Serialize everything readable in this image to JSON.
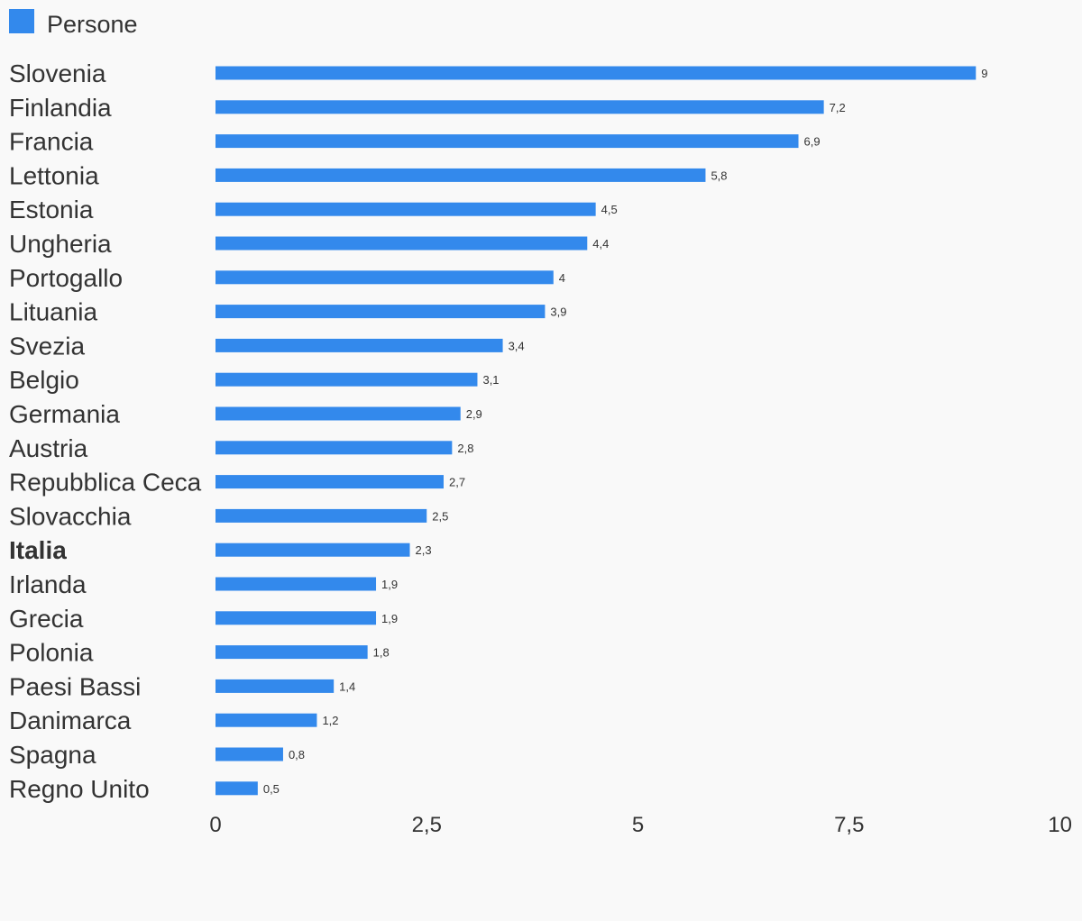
{
  "chart_data": {
    "type": "bar",
    "orientation": "horizontal",
    "title": "",
    "xlabel": "",
    "ylabel": "",
    "categories": [
      "Slovenia",
      "Finlandia",
      "Francia",
      "Lettonia",
      "Estonia",
      "Ungheria",
      "Portogallo",
      "Lituania",
      "Svezia",
      "Belgio",
      "Germania",
      "Austria",
      "Repubblica Ceca",
      "Slovacchia",
      "Italia",
      "Irlanda",
      "Grecia",
      "Polonia",
      "Paesi Bassi",
      "Danimarca",
      "Spagna",
      "Regno Unito"
    ],
    "highlighted_category": "Italia",
    "series": [
      {
        "name": "Persone",
        "color": "#3389ec",
        "values": [
          9,
          7.2,
          6.9,
          5.8,
          4.5,
          4.4,
          4,
          3.9,
          3.4,
          3.1,
          2.9,
          2.8,
          2.7,
          2.5,
          2.3,
          1.9,
          1.9,
          1.8,
          1.4,
          1.2,
          0.8,
          0.5
        ],
        "value_labels": [
          "9",
          "7,2",
          "6,9",
          "5,8",
          "4,5",
          "4,4",
          "4",
          "3,9",
          "3,4",
          "3,1",
          "2,9",
          "2,8",
          "2,7",
          "2,5",
          "2,3",
          "1,9",
          "1,9",
          "1,8",
          "1,4",
          "1,2",
          "0,8",
          "0,5"
        ]
      }
    ],
    "xlim": [
      0,
      10
    ],
    "x_ticks": [
      0,
      2.5,
      5,
      7.5,
      10
    ],
    "x_tick_labels": [
      "0",
      "2,5",
      "5",
      "7,5",
      "10"
    ],
    "grid": false,
    "legend_position": "top-left"
  }
}
